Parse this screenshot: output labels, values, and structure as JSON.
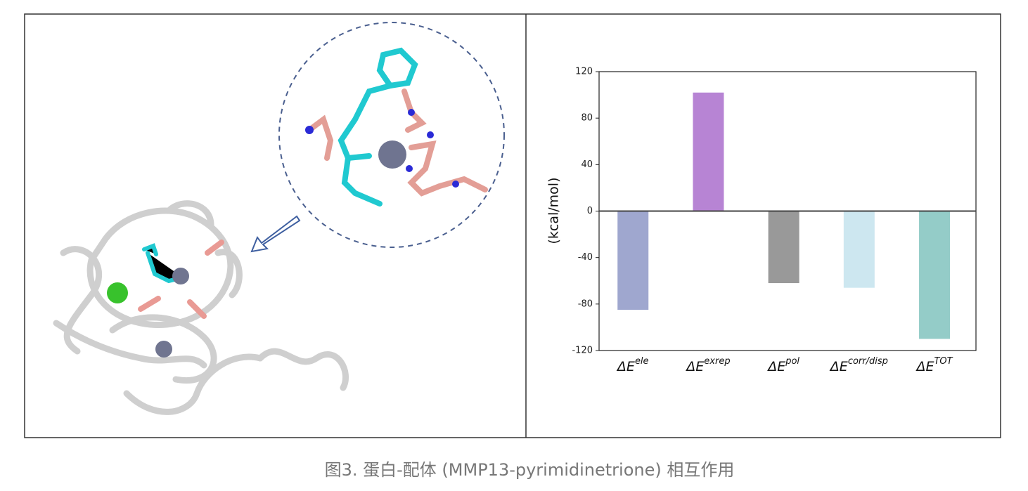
{
  "chart_data": {
    "type": "bar",
    "y_label": "(kcal/mol)",
    "category_prefix": "ΔE",
    "categories": [
      "ele",
      "exrep",
      "pol",
      "corr/disp",
      "TOT"
    ],
    "series": [
      {
        "values": [
          -85,
          102,
          -62,
          -66,
          -110
        ],
        "colors": [
          "#9fa7cf",
          "#b784d4",
          "#999999",
          "#cde7f0",
          "#94ccc8"
        ]
      }
    ],
    "ylim": [
      -120,
      120
    ],
    "yticks": [
      -120,
      -80,
      -40,
      0,
      40,
      80,
      120
    ]
  },
  "caption": "图3. 蛋白-配体 (MMP13-pyrimidinetrione) 相互作用"
}
